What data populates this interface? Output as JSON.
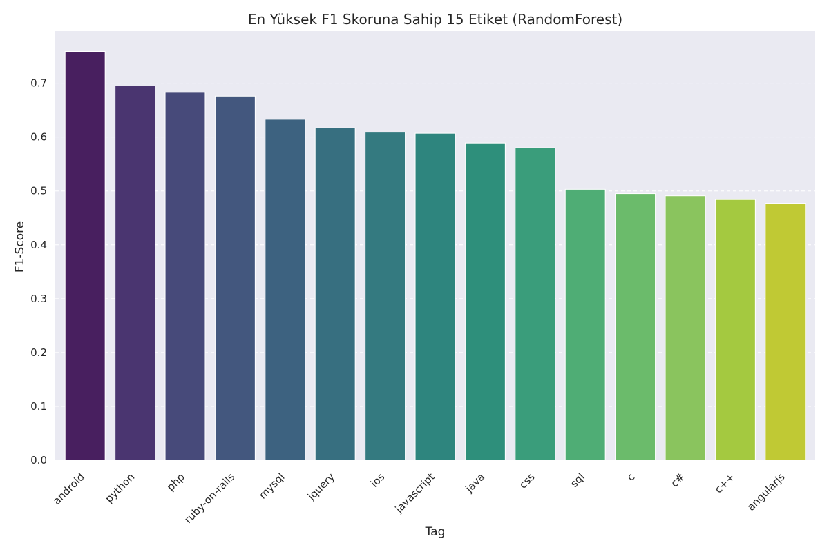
{
  "chart_data": {
    "type": "bar",
    "title": "En Yüksek F1 Skoruna Sahip 15 Etiket (RandomForest)",
    "xlabel": "Tag",
    "ylabel": "F1-Score",
    "categories": [
      "android",
      "python",
      "php",
      "ruby-on-rails",
      "mysql",
      "jquery",
      "ios",
      "javascript",
      "java",
      "css",
      "sql",
      "c",
      "c#",
      "c++",
      "angularjs"
    ],
    "values": [
      0.759,
      0.695,
      0.683,
      0.676,
      0.633,
      0.617,
      0.609,
      0.607,
      0.589,
      0.58,
      0.503,
      0.495,
      0.491,
      0.484,
      0.477
    ],
    "colors": [
      "#481f5f",
      "#4a3570",
      "#474a7a",
      "#43577e",
      "#3d6280",
      "#376f80",
      "#347a80",
      "#2e857e",
      "#2e8f7b",
      "#3a9d7b",
      "#4fad75",
      "#6bbb6b",
      "#8ac45e",
      "#a4c940",
      "#c0c934"
    ],
    "yticks": [
      "0.0",
      "0.1",
      "0.2",
      "0.3",
      "0.4",
      "0.5",
      "0.6",
      "0.7"
    ],
    "ylim": [
      0,
      0.7968
    ],
    "grid": true,
    "background": "#eaeaf2"
  }
}
